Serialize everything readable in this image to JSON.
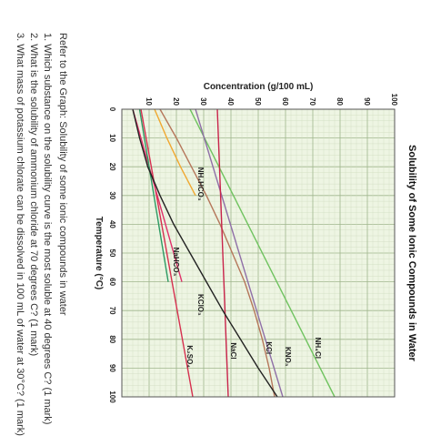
{
  "chart_data": {
    "type": "line",
    "title": "Solubility of Some Ionic Compounds in Water",
    "ylabel": "Concentration (g/100 mL)",
    "xlabel": "Temperature (°C)",
    "xlim": [
      0,
      100
    ],
    "ylim": [
      0,
      100
    ],
    "xticks": [
      "0",
      "10",
      "20",
      "30",
      "40",
      "50",
      "60",
      "70",
      "80",
      "90",
      "100"
    ],
    "yticks": [
      "10",
      "20",
      "30",
      "40",
      "50",
      "60",
      "70",
      "80",
      "90",
      "100"
    ],
    "grid": true,
    "series": [
      {
        "name": "KNO₃",
        "color": "#b5765a",
        "x": [
          0,
          10,
          20,
          30,
          40,
          50,
          60,
          70,
          80,
          90,
          100
        ],
        "y": [
          14,
          20,
          25.5,
          31,
          36,
          40.5,
          45,
          48.5,
          51.5,
          54,
          56
        ],
        "label_at": [
          86,
          60
        ]
      },
      {
        "name": "NH₄Cl",
        "color": "#6fc35f",
        "x": [
          0,
          100
        ],
        "y": [
          25,
          78
        ],
        "label_at": [
          83,
          71
        ]
      },
      {
        "name": "KCl",
        "color": "#8f6fa7",
        "x": [
          0,
          100
        ],
        "y": [
          27,
          59
        ],
        "label_at": [
          83,
          53
        ]
      },
      {
        "name": "NaCl",
        "color": "#c8234a",
        "x": [
          0,
          100
        ],
        "y": [
          35,
          39
        ],
        "label_at": [
          84,
          40
        ]
      },
      {
        "name": "K₂SO₄",
        "color": "#d6304f",
        "x": [
          0,
          100
        ],
        "y": [
          7,
          26
        ],
        "label_at": [
          86,
          24
        ]
      },
      {
        "name": "KClO₃",
        "color": "#e0306a",
        "x": [
          0,
          60
        ],
        "y": [
          4,
          22
        ],
        "label_at": [
          68,
          28
        ]
      },
      {
        "name": "NaHCO₃",
        "color": "#2d9a63",
        "x": [
          0,
          60
        ],
        "y": [
          6.5,
          17
        ],
        "label_at": [
          53,
          19
        ]
      },
      {
        "name": "NH₄HCO₃",
        "color": "#f0a830",
        "x": [
          0,
          10,
          20,
          30
        ],
        "y": [
          12,
          16.5,
          21.5,
          27
        ],
        "label_at": [
          26,
          28
        ]
      },
      {
        "name": "",
        "color": "#222222",
        "x": [
          0,
          10,
          20,
          30,
          40,
          50,
          60,
          70,
          80,
          90,
          100
        ],
        "y": [
          4,
          6.5,
          9.5,
          14,
          19,
          25,
          31,
          37,
          43.5,
          50,
          57
        ],
        "label_at": null
      }
    ]
  },
  "questions": {
    "intro": "Refer to the Graph: Solubility of some ionic compounds in water",
    "q1": "1. Which substance on the solubility curve is the most soluble at 40 degrees C? (1 mark)",
    "q2": "2. What is the solubility of ammonium chloride at 70 degrees C? (1 mark)",
    "q3": "3. What mass of potassium chlorate can be dissolved in 100 mL of water at 30°C? (1 mark)"
  }
}
